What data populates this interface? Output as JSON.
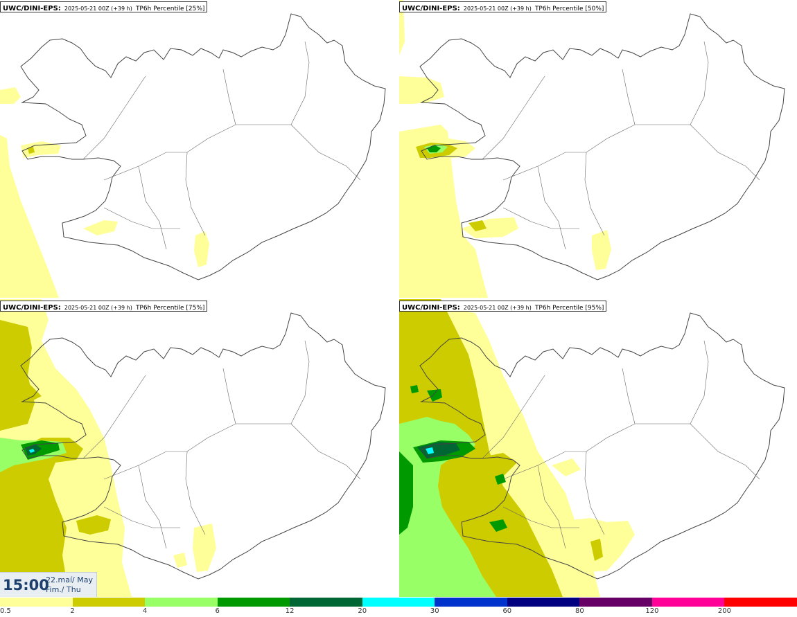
{
  "panels": [
    {
      "model": "UWC/DINI-EPS",
      "separator": ":",
      "run": "2025-05-21 00Z (+39 h)",
      "parameter": "TP6h Percentile [25%]"
    },
    {
      "model": "UWC/DINI-EPS",
      "separator": ":",
      "run": "2025-05-21 00Z (+39 h)",
      "parameter": "TP6h Percentile [50%]"
    },
    {
      "model": "UWC/DINI-EPS",
      "separator": ":",
      "run": "2025-05-21 00Z (+39 h)",
      "parameter": "TP6h Percentile [75%]"
    },
    {
      "model": "UWC/DINI-EPS",
      "separator": ":",
      "run": "2025-05-21 00Z (+39 h)",
      "parameter": "TP6h Percentile [95%]"
    }
  ],
  "valid_time": {
    "time": "15:00",
    "date_line1": "22.maí/ May",
    "date_line2": "Fim./ Thu"
  },
  "legend": {
    "ticks": [
      "0.5",
      "2",
      "4",
      "6",
      "12",
      "20",
      "30",
      "60",
      "80",
      "120",
      "200"
    ],
    "colors": [
      "#ffff99",
      "#cccc00",
      "#99ff66",
      "#009900",
      "#006633",
      "#00ffff",
      "#0033cc",
      "#000080",
      "#660066",
      "#ff0099",
      "#ff0000"
    ]
  },
  "colors": {
    "land_outline": "#444444",
    "precip_0_5": "#ffff99",
    "precip_2": "#cccc00",
    "precip_4": "#99ff66",
    "precip_6": "#009900",
    "precip_12": "#006633",
    "precip_20": "#00ffff"
  }
}
